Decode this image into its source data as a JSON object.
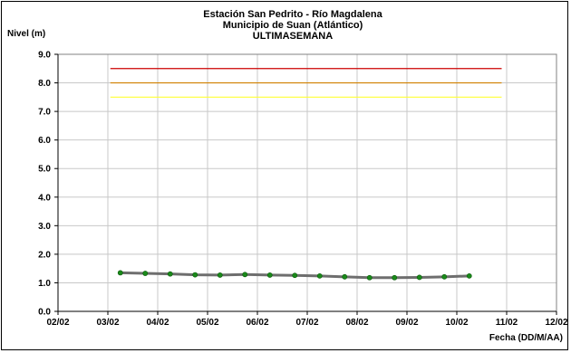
{
  "chart_data": {
    "type": "line",
    "title_lines": [
      "Estación San Pedrito - Río Magdalena",
      "Municipio de Suan (Atlántico)",
      "ULTIMASEMANA"
    ],
    "ylabel": "Nivel (m)",
    "xlabel": "Fecha (DD/M/AA)",
    "ylim": [
      0,
      9
    ],
    "y_ticks": [
      "0.0",
      "1.0",
      "2.0",
      "3.0",
      "4.0",
      "5.0",
      "6.0",
      "7.0",
      "8.0",
      "9.0"
    ],
    "x_ticks": [
      "02/02",
      "03/02",
      "04/02",
      "05/02",
      "06/02",
      "07/02",
      "08/02",
      "09/02",
      "10/02",
      "11/02",
      "12/02"
    ],
    "grid": true,
    "series": [
      {
        "color": "#6e6e6e",
        "marker_color": "#1a8a1a",
        "x": [
          3.25,
          3.75,
          4.25,
          4.75,
          5.25,
          5.75,
          6.25,
          6.75,
          7.25,
          7.75,
          8.25,
          8.75,
          9.25,
          9.75,
          10.25
        ],
        "values": [
          1.35,
          1.33,
          1.31,
          1.28,
          1.27,
          1.29,
          1.27,
          1.26,
          1.24,
          1.21,
          1.18,
          1.18,
          1.19,
          1.21,
          1.24
        ]
      }
    ],
    "thresholds": [
      {
        "value": 8.5,
        "color": "#cc0000",
        "x_start": 3.05,
        "x_end": 10.9
      },
      {
        "value": 8.0,
        "color": "#d08000",
        "x_start": 3.05,
        "x_end": 10.9
      },
      {
        "value": 7.5,
        "color": "#ffff33",
        "x_start": 3.05,
        "x_end": 10.9
      }
    ]
  }
}
